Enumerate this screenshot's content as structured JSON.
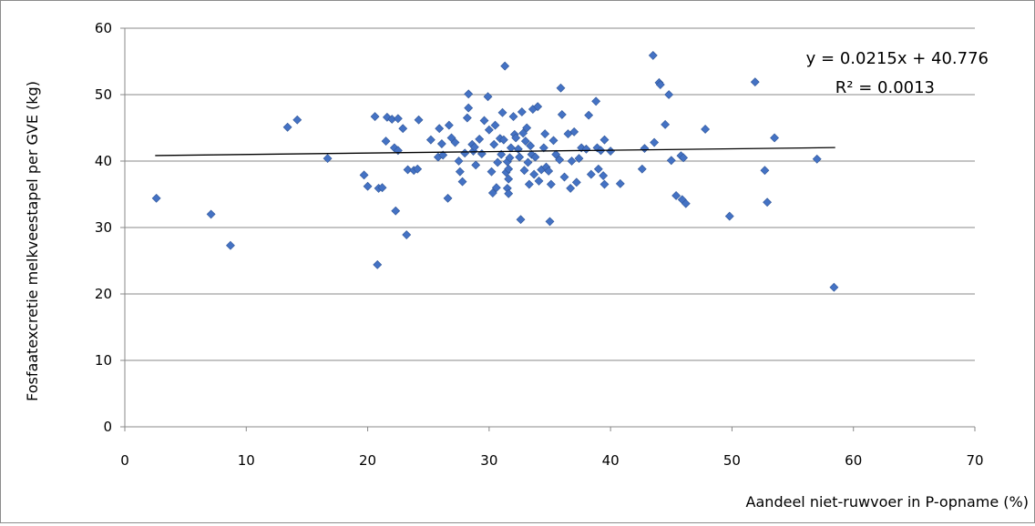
{
  "chart_data": {
    "type": "scatter",
    "title": "",
    "xlabel": "Aandeel niet-ruwvoer in P-opname (%)",
    "ylabel": "Fosfaatexcretie melkveestapel per GVE (kg)",
    "xlim": [
      0,
      70
    ],
    "ylim": [
      0,
      60
    ],
    "xticks": [
      0,
      10,
      20,
      30,
      40,
      50,
      60,
      70
    ],
    "yticks": [
      0,
      10,
      20,
      30,
      40,
      50,
      60
    ],
    "grid": "horizontal",
    "legend": "none",
    "marker_color": "#4472C4",
    "trendline": {
      "type": "linear",
      "slope": 0.0215,
      "intercept": 40.776,
      "x_range": [
        2.5,
        58.5
      ],
      "color": "#000000",
      "equation_label": "y = 0.0215x + 40.776",
      "r2_label": "R² = 0.0013"
    },
    "points": [
      [
        2.6,
        34.4
      ],
      [
        7.1,
        32.0
      ],
      [
        8.7,
        27.3
      ],
      [
        13.4,
        45.1
      ],
      [
        14.2,
        46.2
      ],
      [
        16.7,
        40.4
      ],
      [
        19.7,
        37.9
      ],
      [
        20.0,
        36.2
      ],
      [
        20.6,
        46.7
      ],
      [
        20.8,
        24.4
      ],
      [
        20.9,
        35.9
      ],
      [
        21.2,
        36.0
      ],
      [
        21.5,
        43.0
      ],
      [
        21.6,
        46.6
      ],
      [
        22.0,
        46.3
      ],
      [
        22.2,
        42.0
      ],
      [
        22.3,
        32.5
      ],
      [
        22.5,
        41.6
      ],
      [
        22.5,
        46.4
      ],
      [
        22.9,
        44.9
      ],
      [
        23.2,
        28.9
      ],
      [
        23.3,
        38.7
      ],
      [
        23.8,
        38.6
      ],
      [
        24.1,
        38.8
      ],
      [
        24.2,
        46.2
      ],
      [
        25.2,
        43.2
      ],
      [
        25.8,
        40.6
      ],
      [
        25.9,
        44.9
      ],
      [
        26.1,
        42.6
      ],
      [
        26.2,
        40.9
      ],
      [
        26.6,
        34.4
      ],
      [
        26.7,
        45.4
      ],
      [
        26.9,
        43.5
      ],
      [
        27.2,
        42.8
      ],
      [
        27.5,
        40.0
      ],
      [
        27.6,
        38.4
      ],
      [
        27.8,
        36.9
      ],
      [
        28.0,
        41.2
      ],
      [
        28.2,
        46.5
      ],
      [
        28.3,
        50.1
      ],
      [
        28.3,
        48.0
      ],
      [
        28.6,
        42.5
      ],
      [
        28.7,
        41.5
      ],
      [
        28.8,
        42.1
      ],
      [
        28.9,
        39.4
      ],
      [
        29.2,
        43.3
      ],
      [
        29.4,
        41.1
      ],
      [
        29.6,
        46.1
      ],
      [
        29.9,
        49.7
      ],
      [
        30.0,
        44.7
      ],
      [
        30.2,
        38.4
      ],
      [
        30.3,
        35.2
      ],
      [
        30.4,
        42.5
      ],
      [
        30.5,
        45.4
      ],
      [
        30.6,
        36.0
      ],
      [
        30.7,
        39.8
      ],
      [
        30.9,
        43.4
      ],
      [
        31.0,
        41.0
      ],
      [
        31.1,
        47.3
      ],
      [
        31.2,
        43.2
      ],
      [
        31.3,
        54.3
      ],
      [
        31.4,
        38.3
      ],
      [
        31.5,
        39.9
      ],
      [
        31.5,
        35.9
      ],
      [
        31.6,
        35.1
      ],
      [
        31.6,
        37.3
      ],
      [
        31.6,
        38.8
      ],
      [
        31.7,
        40.5
      ],
      [
        31.8,
        42.0
      ],
      [
        32.0,
        46.7
      ],
      [
        32.1,
        44.0
      ],
      [
        32.2,
        43.5
      ],
      [
        32.4,
        41.8
      ],
      [
        32.5,
        40.6
      ],
      [
        32.6,
        31.2
      ],
      [
        32.7,
        47.4
      ],
      [
        32.8,
        44.2
      ],
      [
        32.9,
        38.6
      ],
      [
        33.0,
        43.0
      ],
      [
        33.1,
        45.0
      ],
      [
        33.2,
        39.8
      ],
      [
        33.3,
        36.5
      ],
      [
        33.4,
        42.3
      ],
      [
        33.5,
        41.0
      ],
      [
        33.6,
        47.8
      ],
      [
        33.7,
        38.0
      ],
      [
        33.8,
        40.6
      ],
      [
        34.0,
        48.2
      ],
      [
        34.1,
        37.0
      ],
      [
        34.3,
        38.7
      ],
      [
        34.5,
        42.0
      ],
      [
        34.6,
        44.1
      ],
      [
        34.7,
        39.1
      ],
      [
        34.9,
        38.5
      ],
      [
        35.0,
        30.9
      ],
      [
        35.1,
        36.5
      ],
      [
        35.3,
        43.1
      ],
      [
        35.5,
        41.0
      ],
      [
        35.8,
        40.2
      ],
      [
        35.9,
        51.0
      ],
      [
        36.0,
        47.0
      ],
      [
        36.2,
        37.6
      ],
      [
        36.5,
        44.1
      ],
      [
        36.7,
        35.9
      ],
      [
        36.8,
        40.0
      ],
      [
        37.0,
        44.4
      ],
      [
        37.2,
        36.8
      ],
      [
        37.4,
        40.4
      ],
      [
        37.6,
        42.0
      ],
      [
        38.0,
        41.8
      ],
      [
        38.2,
        46.9
      ],
      [
        38.4,
        38.0
      ],
      [
        38.8,
        49.0
      ],
      [
        38.9,
        42.0
      ],
      [
        39.0,
        38.8
      ],
      [
        39.2,
        41.6
      ],
      [
        39.4,
        37.8
      ],
      [
        39.5,
        43.2
      ],
      [
        39.5,
        36.5
      ],
      [
        40.0,
        41.5
      ],
      [
        40.8,
        36.6
      ],
      [
        42.6,
        38.8
      ],
      [
        42.8,
        41.9
      ],
      [
        43.5,
        55.9
      ],
      [
        43.6,
        42.8
      ],
      [
        44.0,
        51.8
      ],
      [
        44.1,
        51.5
      ],
      [
        44.5,
        45.5
      ],
      [
        44.8,
        50.0
      ],
      [
        45.0,
        40.1
      ],
      [
        45.4,
        34.8
      ],
      [
        45.8,
        40.8
      ],
      [
        45.9,
        34.2
      ],
      [
        46.0,
        40.5
      ],
      [
        46.2,
        33.6
      ],
      [
        47.8,
        44.8
      ],
      [
        49.8,
        31.7
      ],
      [
        51.9,
        51.9
      ],
      [
        52.7,
        38.6
      ],
      [
        52.9,
        33.8
      ],
      [
        53.5,
        43.5
      ],
      [
        57.0,
        40.3
      ],
      [
        58.4,
        21.0
      ]
    ]
  }
}
